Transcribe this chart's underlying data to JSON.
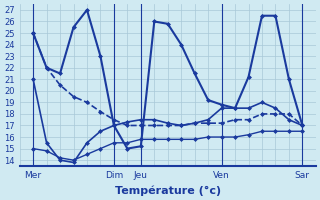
{
  "background_color": "#d0eaf2",
  "grid_color": "#a8c8d8",
  "line_color": "#1a3a9e",
  "title": "Température (°c)",
  "ylim": [
    13.5,
    27.5
  ],
  "yticks": [
    14,
    15,
    16,
    17,
    18,
    19,
    20,
    21,
    22,
    23,
    24,
    25,
    26,
    27
  ],
  "xlim": [
    0,
    22
  ],
  "x_tick_positions": [
    1,
    7,
    9,
    15,
    21
  ],
  "x_tick_labels": [
    "Mer",
    "Dim",
    "Jeu",
    "Ven",
    "Sar"
  ],
  "series": [
    {
      "x": [
        1,
        2,
        3,
        4,
        5,
        6,
        7,
        8,
        9,
        10,
        11,
        12,
        13,
        14,
        15,
        16,
        17,
        18,
        19,
        20,
        21
      ],
      "y": [
        25,
        22,
        21.5,
        25.5,
        27,
        23,
        17,
        15,
        15.2,
        26,
        25.8,
        24,
        21.5,
        19.2,
        18.8,
        18.5,
        21.2,
        26.5,
        26.5,
        21,
        17
      ],
      "style": "-",
      "lw": 1.5
    },
    {
      "x": [
        1,
        2,
        3,
        4,
        5,
        6,
        7,
        8,
        9,
        10,
        11,
        12,
        13,
        14,
        15,
        16,
        17,
        18,
        19,
        20,
        21
      ],
      "y": [
        21,
        15.5,
        14.0,
        13.8,
        15.5,
        16.5,
        17,
        17.3,
        17.5,
        17.5,
        17.2,
        17,
        17.2,
        17.5,
        18.5,
        18.5,
        18.5,
        19,
        18.5,
        17.5,
        17
      ],
      "style": "-",
      "lw": 1.2
    },
    {
      "x": [
        1,
        2,
        3,
        4,
        5,
        6,
        7,
        8,
        9,
        10,
        11,
        12,
        13,
        14,
        15,
        16,
        17,
        18,
        19,
        20,
        21
      ],
      "y": [
        25,
        22,
        20.5,
        19.5,
        19,
        18.2,
        17.5,
        17,
        17,
        17,
        17,
        17,
        17.2,
        17.2,
        17.2,
        17.5,
        17.5,
        18,
        18,
        18,
        17
      ],
      "style": "--",
      "lw": 1.2
    },
    {
      "x": [
        1,
        2,
        3,
        4,
        5,
        6,
        7,
        8,
        9,
        10,
        11,
        12,
        13,
        14,
        15,
        16,
        17,
        18,
        19,
        20,
        21
      ],
      "y": [
        15.0,
        14.8,
        14.2,
        14.0,
        14.5,
        15.0,
        15.5,
        15.5,
        15.8,
        15.8,
        15.8,
        15.8,
        15.8,
        16.0,
        16.0,
        16.0,
        16.2,
        16.5,
        16.5,
        16.5,
        16.5
      ],
      "style": "-",
      "lw": 1.0
    }
  ]
}
